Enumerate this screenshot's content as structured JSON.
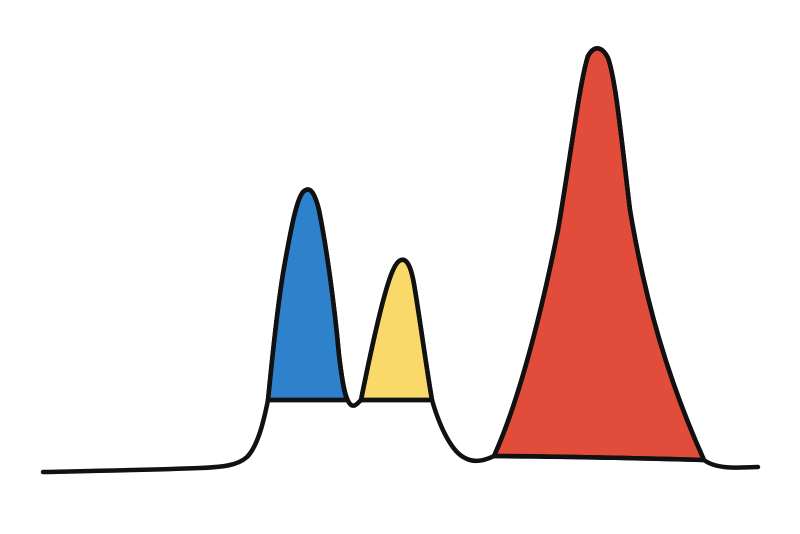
{
  "diagram": {
    "background_color": "#ffffff",
    "line_color": "#111111",
    "peaks": [
      {
        "id": "peak-1",
        "color": "#2e82cc",
        "relative_height": 0.66
      },
      {
        "id": "peak-2",
        "color": "#f8d96a",
        "relative_height": 0.51
      },
      {
        "id": "peak-3",
        "color": "#e24c3b",
        "relative_height": 1.0
      }
    ]
  }
}
